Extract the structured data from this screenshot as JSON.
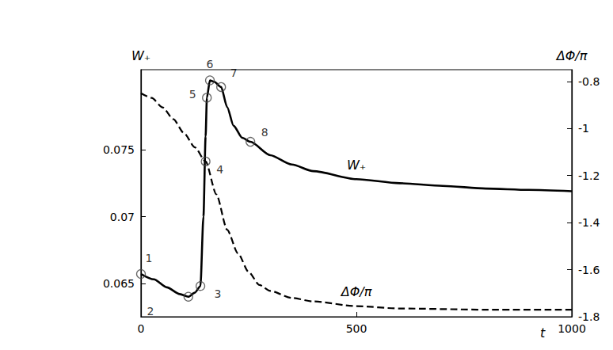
{
  "chart_data": {
    "type": "line",
    "xlabel": "t",
    "ylabel": "W₊",
    "y2label": "ΔΦ/π",
    "xlim": [
      0,
      1000
    ],
    "xticks": [
      0,
      500,
      1000
    ],
    "ylim": [
      0.0625,
      0.081
    ],
    "yticks": [
      0.065,
      0.07,
      0.075
    ],
    "y2lim": [
      -1.8,
      -0.75
    ],
    "y2ticks": [
      -1.8,
      -1.6,
      -1.4,
      -1.2,
      -1,
      -0.8
    ],
    "grid": false,
    "series": [
      {
        "name": "W₊",
        "color": "#000000",
        "line_style": "solid",
        "x": [
          0,
          30,
          60,
          90,
          110,
          125,
          138,
          145,
          150,
          153,
          160,
          170,
          186,
          200,
          215,
          235,
          254,
          300,
          350,
          400,
          500,
          600,
          700,
          800,
          900,
          1000
        ],
        "values": [
          0.0657,
          0.0653,
          0.0647,
          0.0642,
          0.064,
          0.0643,
          0.0648,
          0.07,
          0.076,
          0.0789,
          0.0802,
          0.0801,
          0.0797,
          0.0782,
          0.0768,
          0.0759,
          0.0756,
          0.0746,
          0.0739,
          0.0734,
          0.0728,
          0.0725,
          0.0723,
          0.0721,
          0.072,
          0.0719
        ]
      },
      {
        "name": "ΔΦ/π",
        "axis": "y2",
        "color": "#000000",
        "line_style": "dashed",
        "x": [
          0,
          25,
          50,
          75,
          100,
          125,
          150,
          175,
          200,
          225,
          250,
          275,
          300,
          350,
          400,
          500,
          600,
          800,
          1000
        ],
        "values": [
          -0.85,
          -0.87,
          -0.91,
          -0.96,
          -1.02,
          -1.08,
          -1.14,
          -1.28,
          -1.43,
          -1.53,
          -1.61,
          -1.665,
          -1.69,
          -1.72,
          -1.735,
          -1.755,
          -1.765,
          -1.77,
          -1.77
        ]
      }
    ],
    "annotations": [
      {
        "text": "1",
        "x": 0,
        "y": 0.0657
      },
      {
        "text": "2",
        "x": 110,
        "y": 0.064
      },
      {
        "text": "3",
        "x": 138,
        "y": 0.0648
      },
      {
        "text": "4",
        "x": 150,
        "y": -1.14,
        "axis": "y2"
      },
      {
        "text": "5",
        "x": 153,
        "y": 0.0789
      },
      {
        "text": "6",
        "x": 160,
        "y": 0.0802
      },
      {
        "text": "7",
        "x": 186,
        "y": 0.0797
      },
      {
        "text": "8",
        "x": 254,
        "y": 0.0756
      }
    ]
  }
}
